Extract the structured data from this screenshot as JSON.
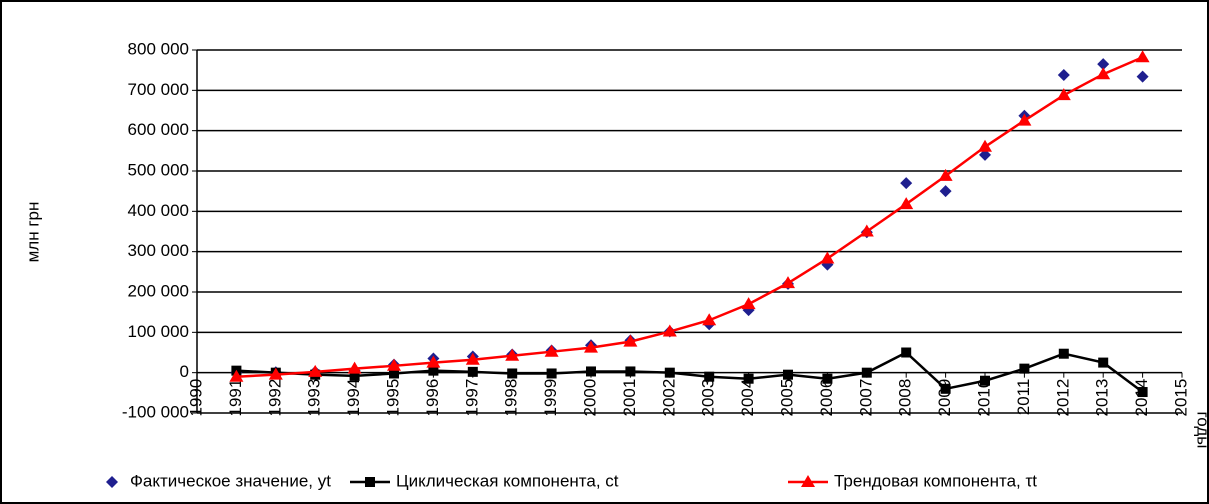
{
  "chart_data": {
    "type": "line",
    "ylabel": "млн грн",
    "xlabel": "годы",
    "x": [
      1991,
      1992,
      1993,
      1994,
      1995,
      1996,
      1997,
      1998,
      1999,
      2000,
      2001,
      2002,
      2003,
      2004,
      2005,
      2006,
      2007,
      2008,
      2009,
      2010,
      2011,
      2012,
      2013,
      2014
    ],
    "series": [
      {
        "name": "Фактическое значение, yt",
        "color": "#1f1f8f",
        "marker": "diamond",
        "line": false,
        "values": [
          0,
          1000,
          2000,
          5000,
          20000,
          35000,
          40000,
          45000,
          55000,
          68000,
          80000,
          102000,
          120000,
          155000,
          220000,
          268000,
          348000,
          470000,
          450000,
          540000,
          637000,
          738000,
          765000,
          734000
        ]
      },
      {
        "name": "Циклическая компонента, ct",
        "color": "#000000",
        "marker": "square",
        "line": true,
        "values": [
          5000,
          0,
          -5000,
          -8000,
          -2000,
          5000,
          2000,
          -2000,
          -2000,
          3000,
          3000,
          0,
          -10000,
          -15000,
          -5000,
          -15000,
          0,
          50000,
          -40000,
          -20000,
          10000,
          47000,
          25000,
          -48000
        ]
      },
      {
        "name": "Трендовая компонента, τt",
        "color": "#ff0000",
        "marker": "triangle",
        "line": true,
        "values": [
          -10000,
          -5000,
          2000,
          10000,
          17000,
          25000,
          32000,
          42000,
          52000,
          62000,
          77000,
          102000,
          130000,
          170000,
          222000,
          283000,
          350000,
          418000,
          488000,
          560000,
          625000,
          688000,
          740000,
          782000
        ]
      }
    ],
    "xlim": [
      1990,
      2015
    ],
    "xticks": [
      1990,
      1991,
      1992,
      1993,
      1994,
      1995,
      1996,
      1997,
      1998,
      1999,
      2000,
      2001,
      2002,
      2003,
      2004,
      2005,
      2006,
      2007,
      2008,
      2009,
      2010,
      2011,
      2012,
      2013,
      2014,
      2015
    ],
    "ylim": [
      -100000,
      800000
    ],
    "yticks": [
      {
        "value": -100000,
        "label": "-100 000"
      },
      0,
      {
        "value": 100000,
        "label": "100 000"
      },
      {
        "value": 200000,
        "label": "200 000"
      },
      {
        "value": 300000,
        "label": "300 000"
      },
      {
        "value": 400000,
        "label": "400 000"
      },
      {
        "value": 500000,
        "label": "500 000"
      },
      {
        "value": 600000,
        "label": "600 000"
      },
      {
        "value": 700000,
        "label": "700 000"
      },
      {
        "value": 800000,
        "label": "800 000"
      }
    ],
    "grid": true,
    "legend": "bottom"
  }
}
